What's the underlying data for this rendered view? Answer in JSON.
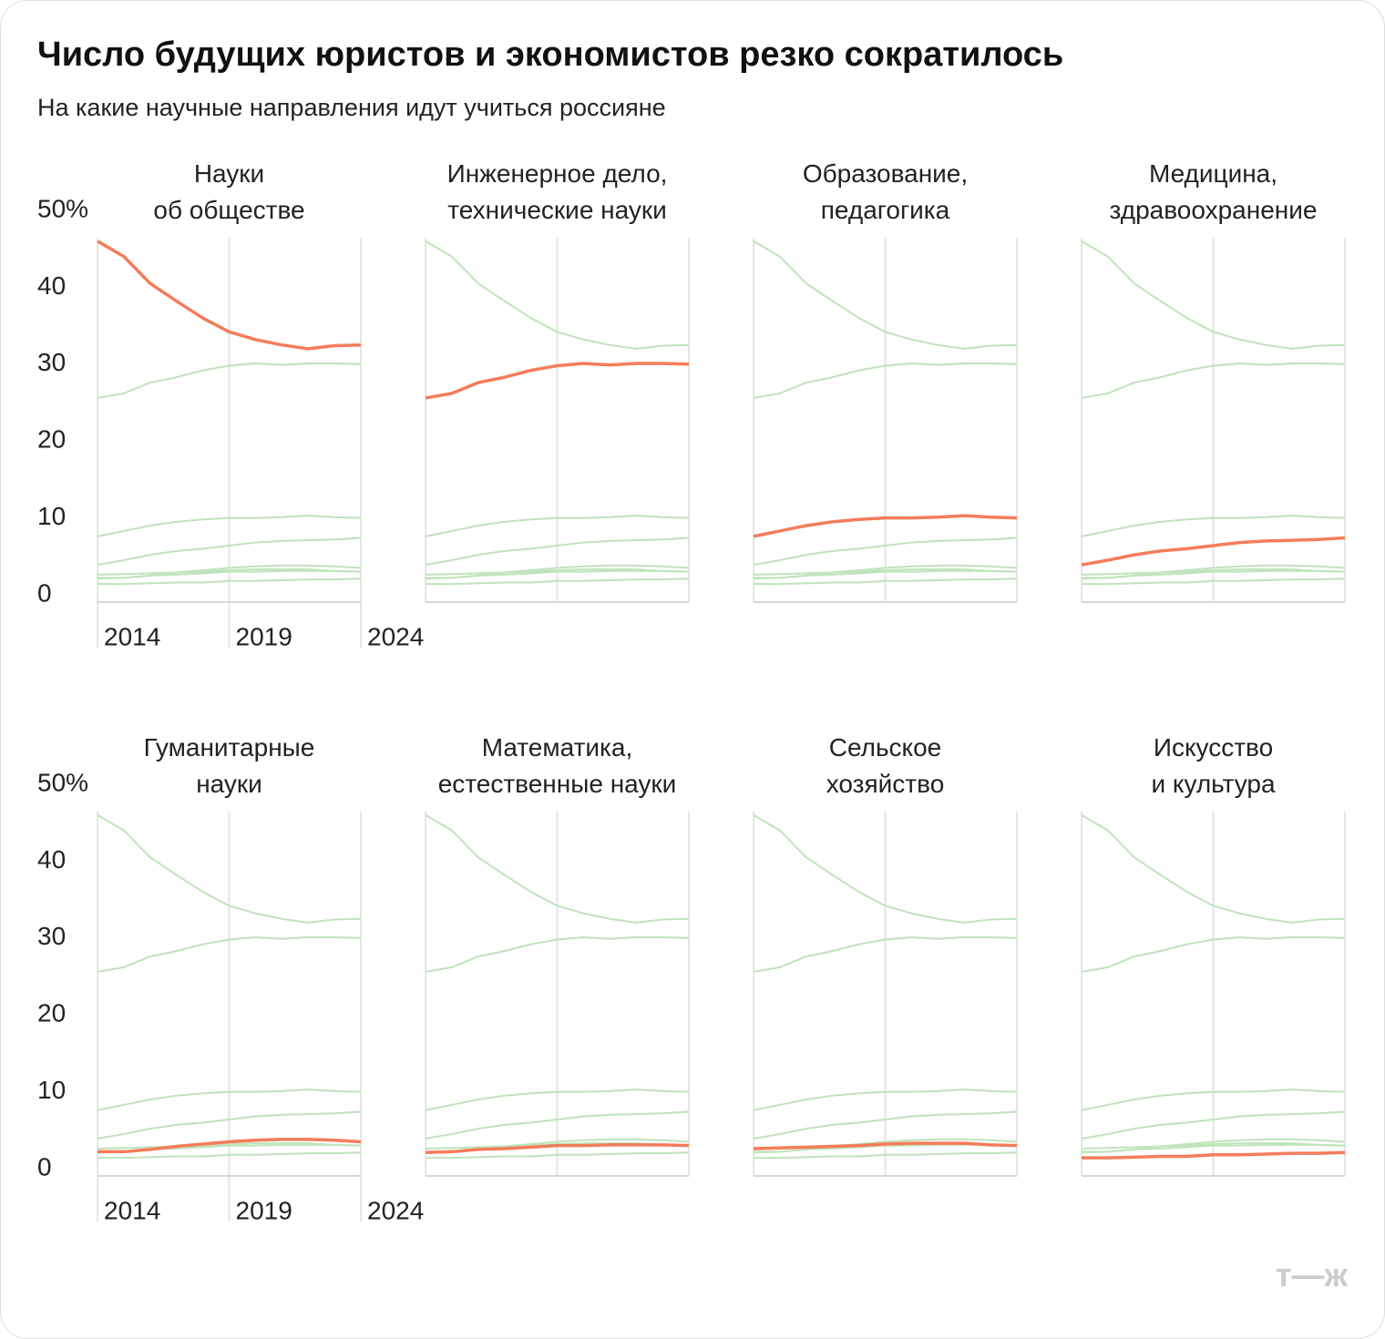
{
  "chart_data": {
    "type": "line",
    "title": "Число будущих юристов и экономистов резко сократилось",
    "subtitle": "На какие научные направления идут учиться россияне",
    "x": [
      2014,
      2015,
      2016,
      2017,
      2018,
      2019,
      2020,
      2021,
      2022,
      2023,
      2024
    ],
    "xlim": [
      2014,
      2024
    ],
    "xticks": [
      2014,
      2019,
      2024
    ],
    "ylim": [
      0,
      50
    ],
    "yticks": [
      0,
      10,
      20,
      30,
      40,
      {
        "value": 50,
        "label": "50%"
      }
    ],
    "highlight_color": "#f47c5a",
    "background_color": "#bfe3bb",
    "series": [
      {
        "name": "Науки\nоб обществе",
        "values": [
          46.0,
          44.0,
          40.5,
          38.2,
          36.0,
          34.2,
          33.2,
          32.5,
          32.0,
          32.4,
          32.5
        ]
      },
      {
        "name": "Инженерное дело,\nтехнические науки",
        "values": [
          25.6,
          26.2,
          27.6,
          28.3,
          29.2,
          29.8,
          30.1,
          29.9,
          30.1,
          30.1,
          30.0
        ]
      },
      {
        "name": "Образование,\nпедагогика",
        "values": [
          7.6,
          8.3,
          9.0,
          9.5,
          9.8,
          10.0,
          10.0,
          10.1,
          10.3,
          10.1,
          10.0
        ]
      },
      {
        "name": "Медицина,\nздравоохранение",
        "values": [
          3.9,
          4.5,
          5.2,
          5.7,
          6.0,
          6.4,
          6.8,
          7.0,
          7.1,
          7.2,
          7.4
        ]
      },
      {
        "name": "Гуманитарные\nнауки",
        "values": [
          2.2,
          2.2,
          2.5,
          2.9,
          3.2,
          3.5,
          3.7,
          3.8,
          3.8,
          3.7,
          3.5
        ]
      },
      {
        "name": "Математика,\nестественные науки",
        "values": [
          2.1,
          2.2,
          2.5,
          2.6,
          2.8,
          3.0,
          3.0,
          3.1,
          3.1,
          3.1,
          3.0
        ]
      },
      {
        "name": "Сельское\nхозяйство",
        "values": [
          2.6,
          2.7,
          2.8,
          2.9,
          3.0,
          3.2,
          3.3,
          3.3,
          3.3,
          3.1,
          3.0
        ]
      },
      {
        "name": "Искусство\nи культура",
        "values": [
          1.4,
          1.4,
          1.5,
          1.6,
          1.6,
          1.8,
          1.8,
          1.9,
          2.0,
          2.0,
          2.1
        ]
      }
    ],
    "logo": "т—ж"
  }
}
